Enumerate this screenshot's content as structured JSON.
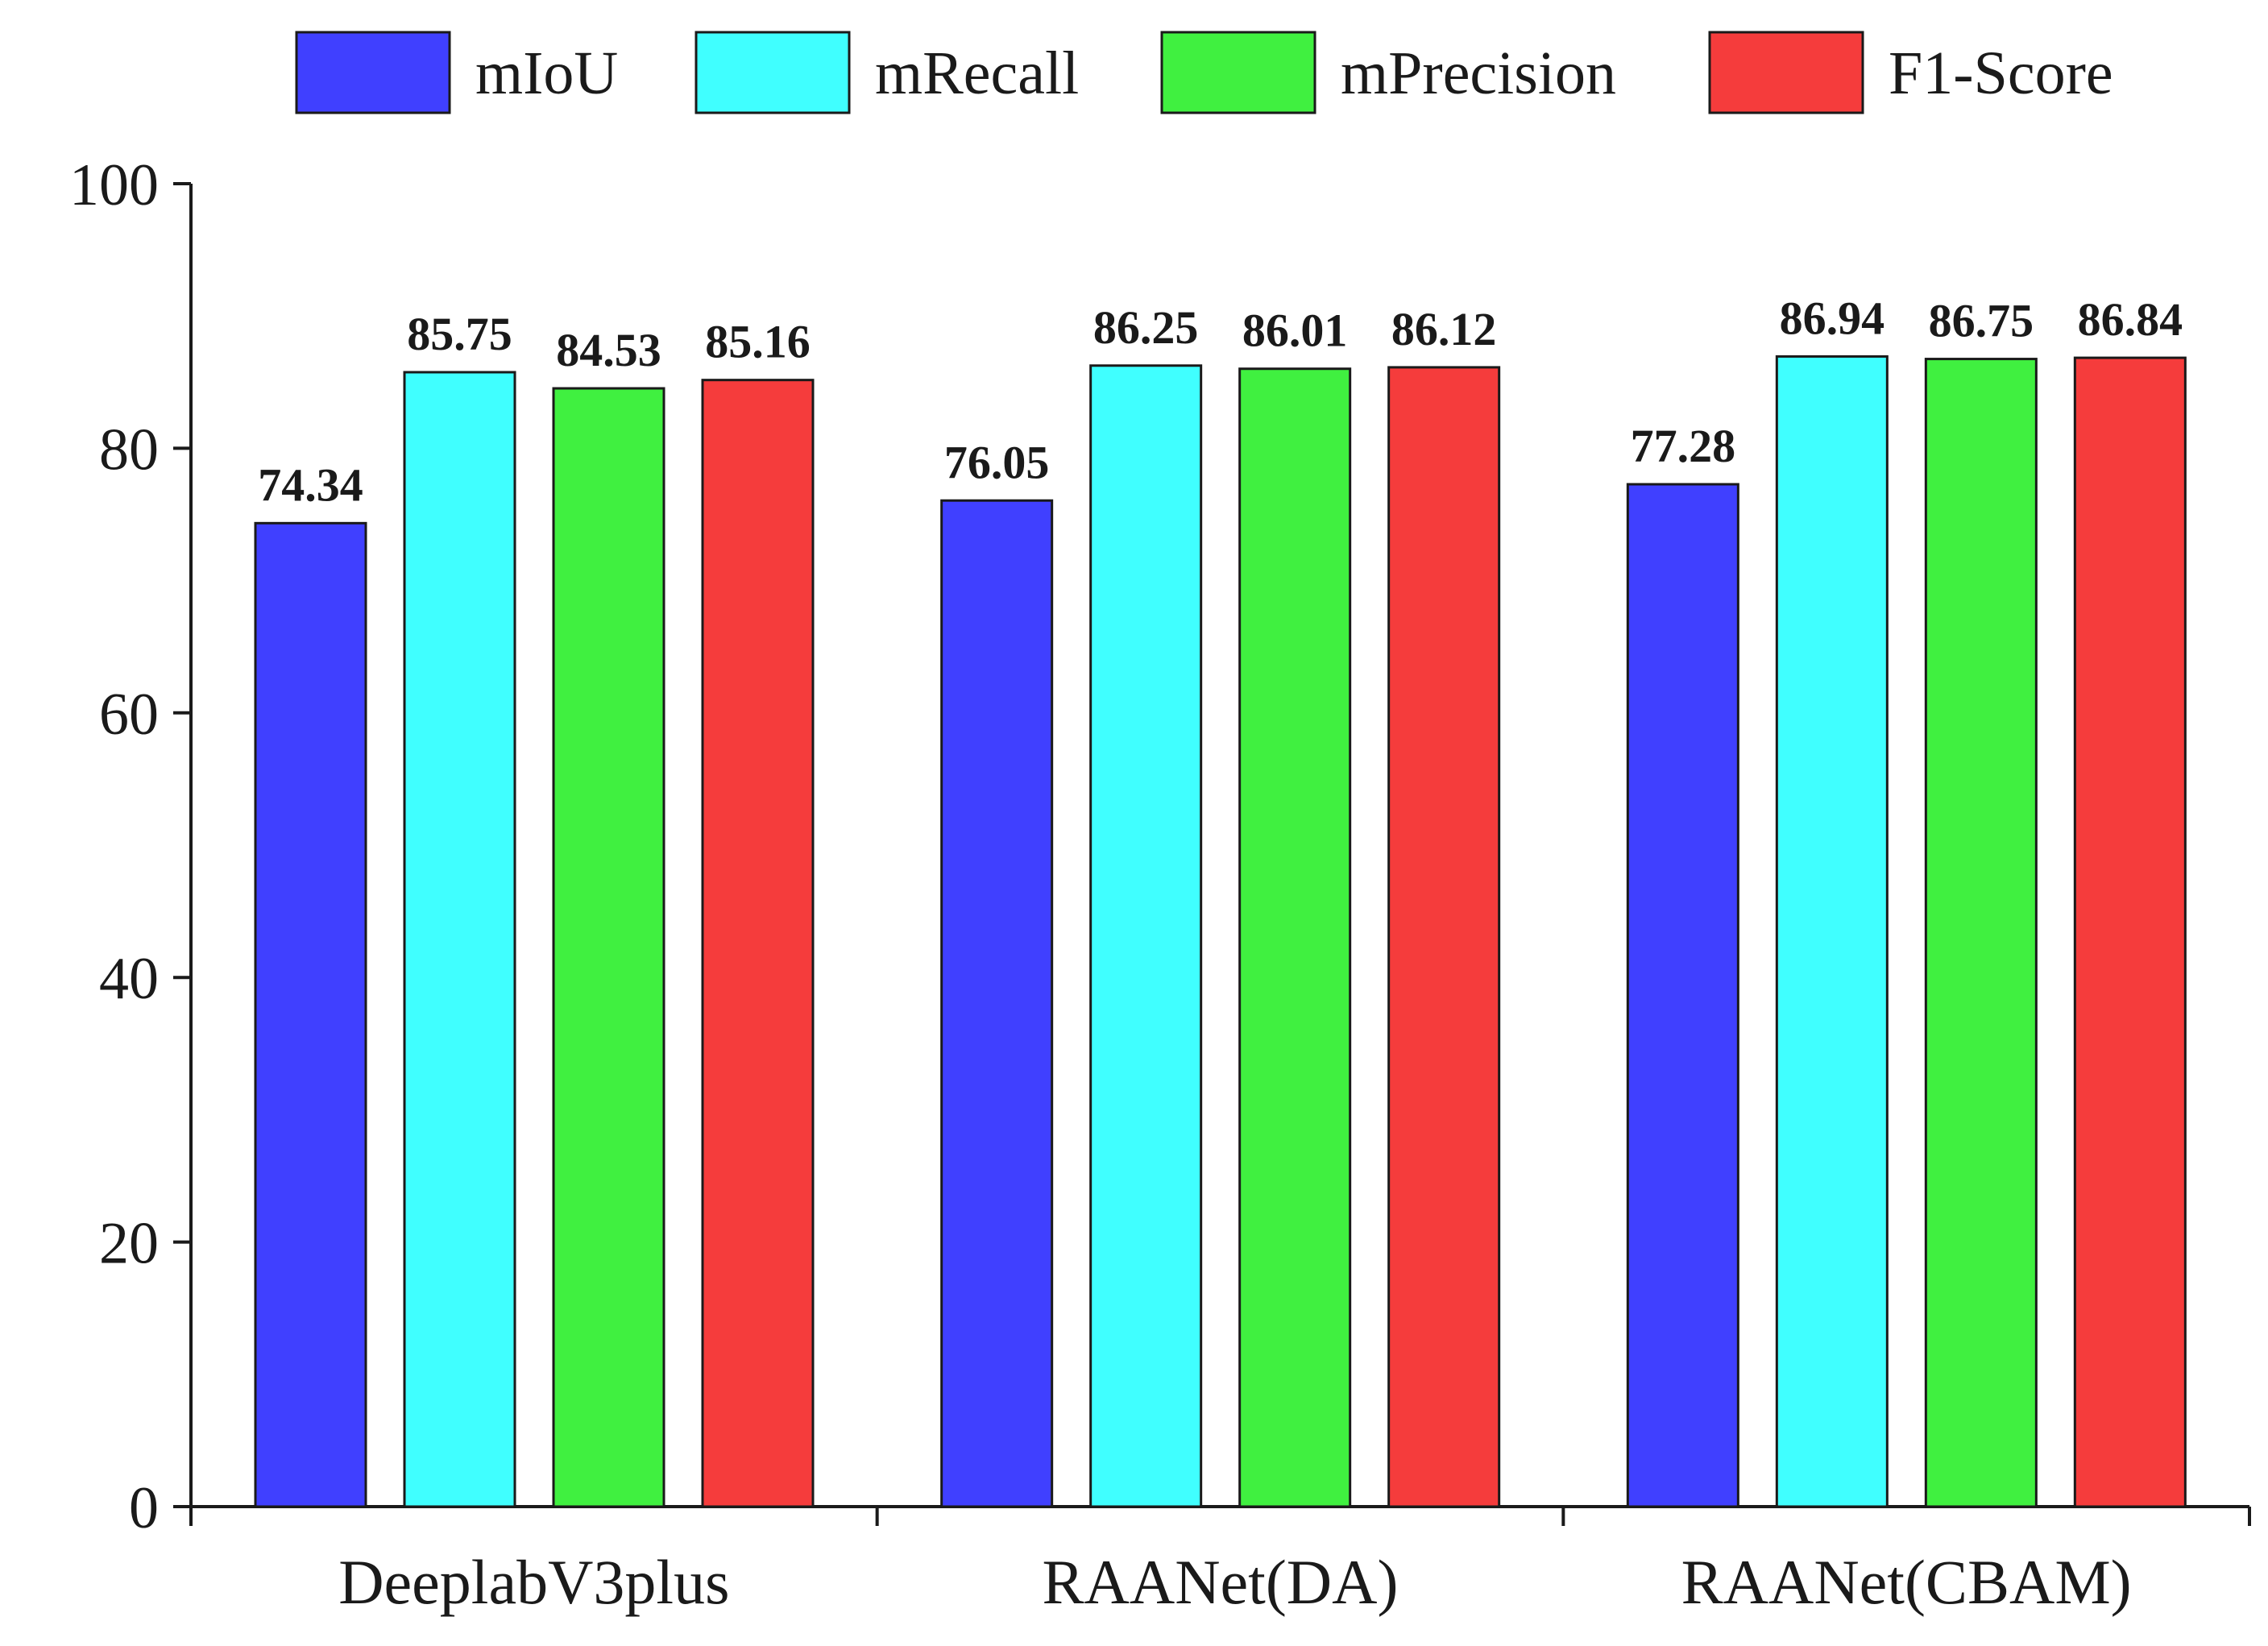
{
  "chart_data": {
    "type": "bar",
    "title": "",
    "xlabel": "",
    "ylabel": "",
    "categories": [
      "DeeplabV3plus",
      "RAANet(DA)",
      "RAANet(CBAM)"
    ],
    "series": [
      {
        "name": "mIoU",
        "color": "#4040ff",
        "values": [
          74.34,
          76.05,
          77.28
        ]
      },
      {
        "name": "mRecall",
        "color": "#40ffff",
        "values": [
          85.75,
          86.25,
          86.94
        ]
      },
      {
        "name": "mPrecision",
        "color": "#40f040",
        "values": [
          84.53,
          86.01,
          86.75
        ]
      },
      {
        "name": "F1-Score",
        "color": "#f53c3c",
        "values": [
          85.16,
          86.12,
          86.84
        ]
      }
    ],
    "value_labels": [
      [
        "74.34",
        "76.05",
        "77.28"
      ],
      [
        "85.75",
        "86.25",
        "86.94"
      ],
      [
        "84.53",
        "86.01",
        "86.75"
      ],
      [
        "85.16",
        "86.12",
        "86.84"
      ]
    ],
    "ylim": [
      0,
      100
    ],
    "yticks": [
      0,
      20,
      40,
      60,
      80,
      100
    ],
    "ytick_labels": [
      "0",
      "20",
      "40",
      "60",
      "80",
      "100"
    ],
    "grid": false,
    "legend_position": "top"
  }
}
